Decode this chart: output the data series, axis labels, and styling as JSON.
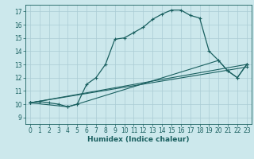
{
  "title": "",
  "xlabel": "Humidex (Indice chaleur)",
  "background_color": "#cce8ec",
  "grid_color": "#aaccd4",
  "line_color": "#1a6060",
  "xlim": [
    -0.5,
    23.5
  ],
  "ylim": [
    8.5,
    17.5
  ],
  "xticks": [
    0,
    1,
    2,
    3,
    4,
    5,
    6,
    7,
    8,
    9,
    10,
    11,
    12,
    13,
    14,
    15,
    16,
    17,
    18,
    19,
    20,
    21,
    22,
    23
  ],
  "yticks": [
    9,
    10,
    11,
    12,
    13,
    14,
    15,
    16,
    17
  ],
  "line1_x": [
    0,
    1,
    2,
    3,
    4,
    5,
    6,
    7,
    8,
    9,
    10,
    11,
    12,
    13,
    14,
    15,
    16,
    17,
    18,
    19,
    20,
    21,
    22,
    23
  ],
  "line1_y": [
    10.1,
    10.2,
    10.1,
    10.0,
    9.8,
    10.0,
    11.5,
    12.0,
    13.0,
    14.9,
    15.0,
    15.4,
    15.8,
    16.4,
    16.8,
    17.1,
    17.1,
    16.7,
    16.5,
    14.0,
    13.3,
    12.5,
    12.0,
    13.0
  ],
  "line2_x": [
    0,
    23
  ],
  "line2_y": [
    10.1,
    13.0
  ],
  "line3_x": [
    0,
    23
  ],
  "line3_y": [
    10.1,
    12.8
  ],
  "line4_x": [
    0,
    4,
    5,
    20,
    21,
    22,
    23
  ],
  "line4_y": [
    10.1,
    9.8,
    10.0,
    13.3,
    12.5,
    12.0,
    13.0
  ]
}
